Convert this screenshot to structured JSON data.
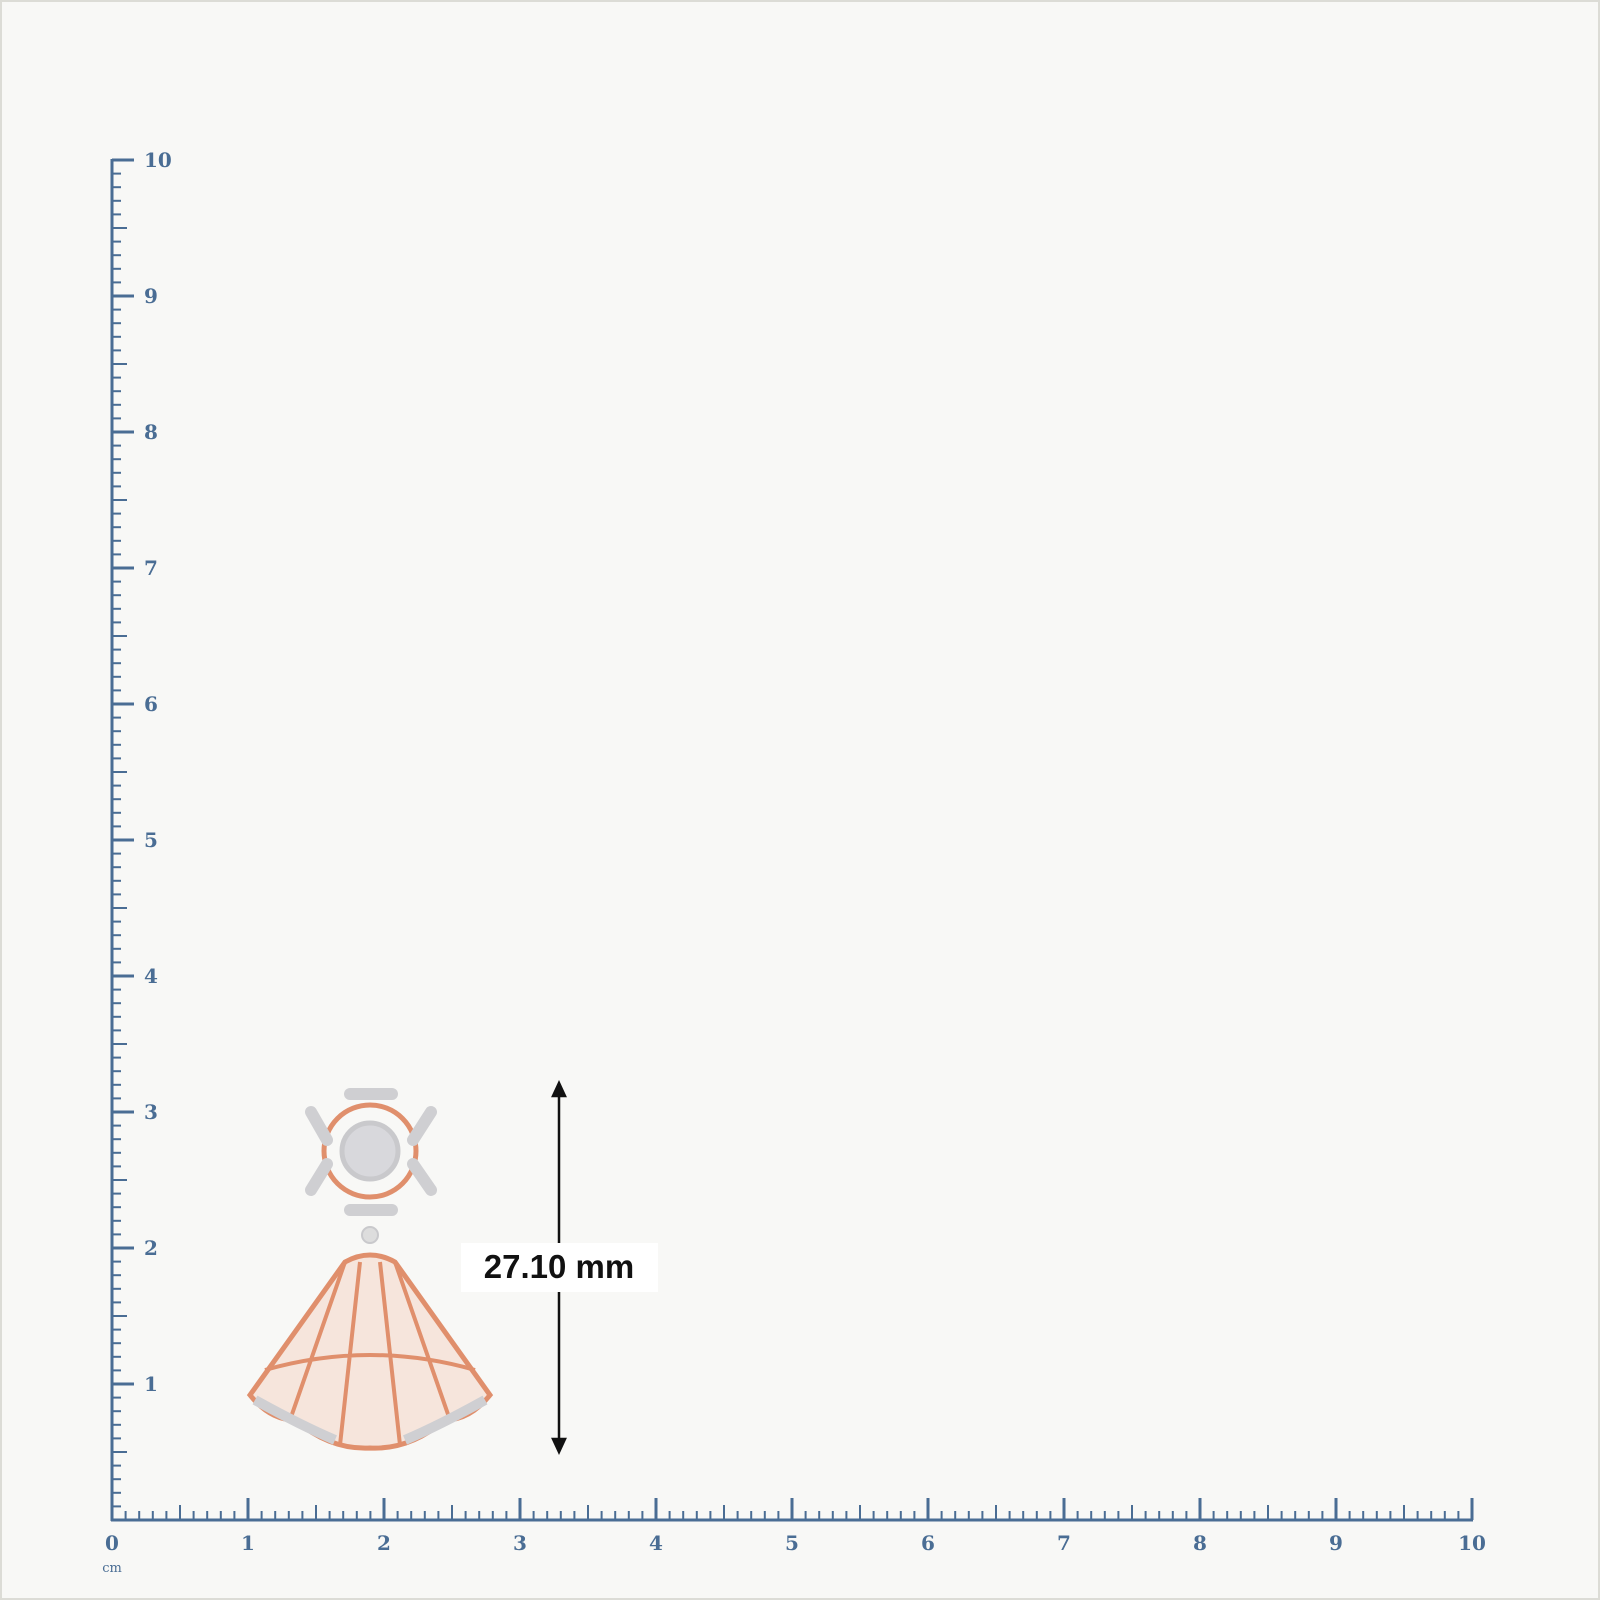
{
  "ruler": {
    "unit": "cm",
    "x_ticks": [
      "0",
      "1",
      "2",
      "3",
      "4",
      "5",
      "6",
      "7",
      "8",
      "9",
      "10"
    ],
    "y_ticks": [
      "1",
      "2",
      "3",
      "4",
      "5",
      "6",
      "7",
      "8",
      "9",
      "10"
    ]
  },
  "measurement": {
    "label": "27.10 mm"
  }
}
